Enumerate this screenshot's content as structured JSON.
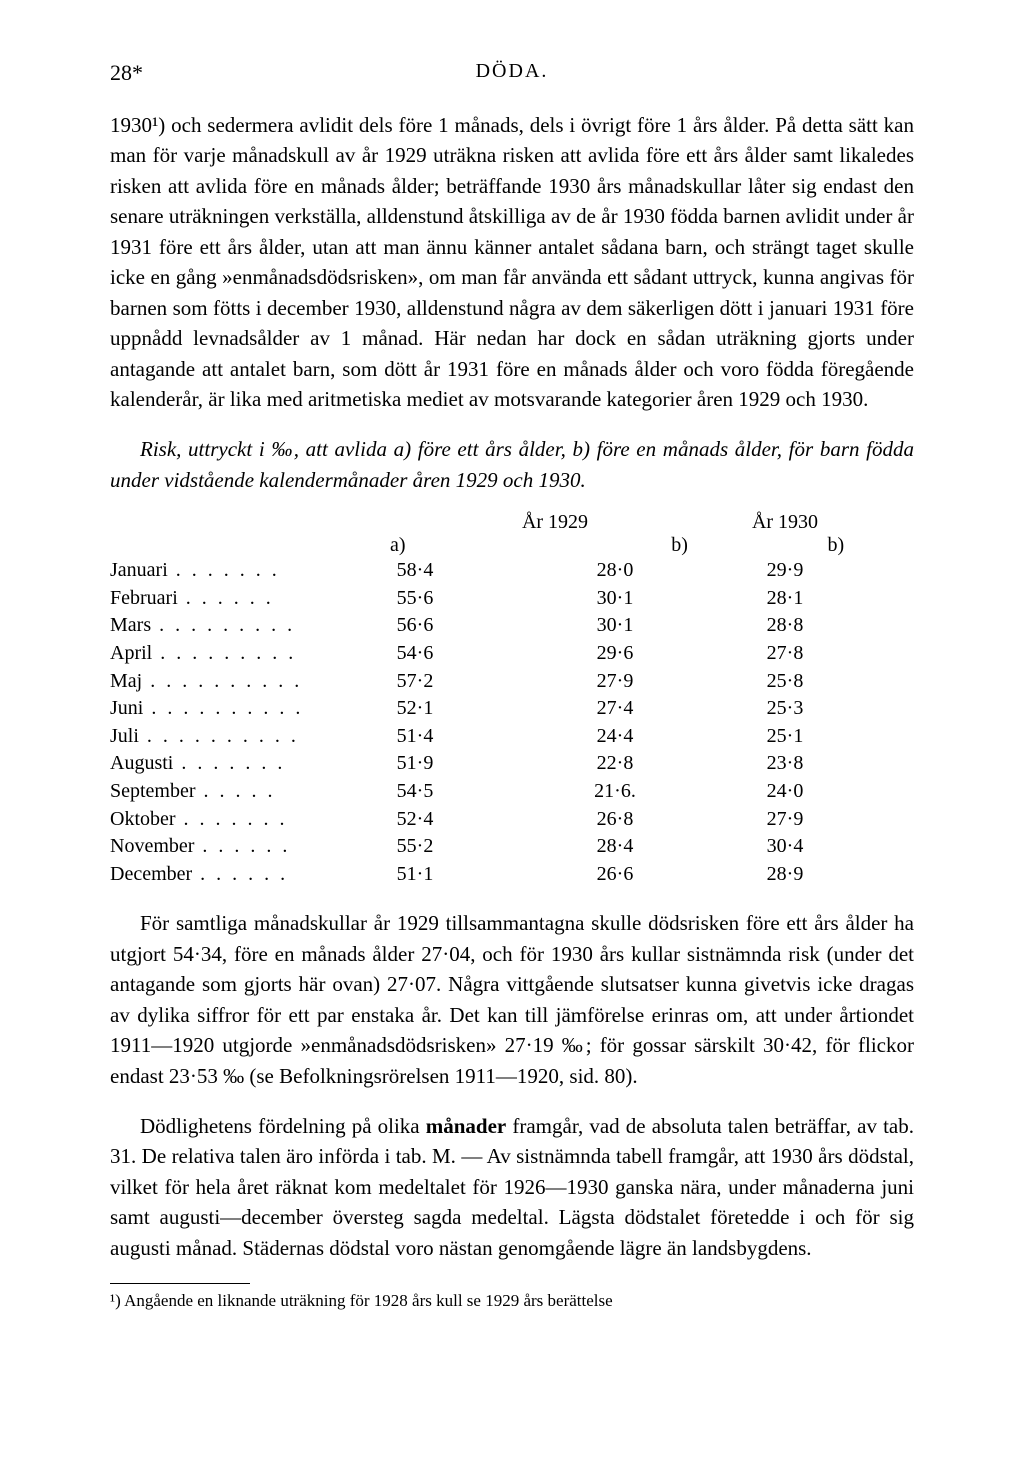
{
  "header": {
    "page_num": "28*",
    "title": "DÖDA."
  },
  "para1": "1930¹) och sedermera avlidit dels före 1 månads, dels i övrigt före 1 års ålder. På detta sätt kan man för varje månadskull av år 1929 uträkna risken att avlida före ett års ålder samt likaledes risken att avlida före en månads ålder; beträffande 1930 års månadskullar låter sig endast den senare uträkningen verkställa, alldenstund åtskilliga av de år 1930 födda barnen avlidit under år 1931 före ett års ålder, utan att man ännu känner antalet sådana barn, och strängt taget skulle icke en gång »enmånadsdödsrisken», om man får använda ett sådant uttryck, kunna angivas för barnen som fötts i december 1930, alldenstund några av dem säkerligen dött i januari 1931 före uppnådd levnadsålder av 1 månad. Här nedan har dock en sådan uträkning gjorts under antagande att antalet barn, som dött år 1931 före en månads ålder och voro födda föregående kalenderår, är lika med aritmetiska mediet av motsvarande kategorier åren 1929 och 1930.",
  "italic_heading": "Risk, uttryckt i ‰, att avlida a) före ett års ålder, b) före en månads ålder, för barn födda under vidstående kalendermånader åren 1929 och 1930.",
  "table": {
    "year1": "År 1929",
    "year2": "År 1930",
    "sub_a": "a)",
    "sub_b1": "b)",
    "sub_b2": "b)",
    "rows": [
      {
        "month": "Januari",
        "a": "58·4",
        "b1": "28·0",
        "b2": "29·9"
      },
      {
        "month": "Februari",
        "a": "55·6",
        "b1": "30·1",
        "b2": "28·1"
      },
      {
        "month": "Mars",
        "a": "56·6",
        "b1": "30·1",
        "b2": "28·8"
      },
      {
        "month": "April",
        "a": "54·6",
        "b1": "29·6",
        "b2": "27·8"
      },
      {
        "month": "Maj",
        "a": "57·2",
        "b1": "27·9",
        "b2": "25·8"
      },
      {
        "month": "Juni",
        "a": "52·1",
        "b1": "27·4",
        "b2": "25·3"
      },
      {
        "month": "Juli",
        "a": "51·4",
        "b1": "24·4",
        "b2": "25·1"
      },
      {
        "month": "Augusti",
        "a": "51·9",
        "b1": "22·8",
        "b2": "23·8"
      },
      {
        "month": "September",
        "a": "54·5",
        "b1": "21·6.",
        "b2": "24·0"
      },
      {
        "month": "Oktober",
        "a": "52·4",
        "b1": "26·8",
        "b2": "27·9"
      },
      {
        "month": "November",
        "a": "55·2",
        "b1": "28·4",
        "b2": "30·4"
      },
      {
        "month": "December",
        "a": "51·1",
        "b1": "26·6",
        "b2": "28·9"
      }
    ]
  },
  "para2": "För samtliga månadskullar år 1929 tillsammantagna skulle dödsrisken före ett års ålder ha utgjort 54·34, före en månads ålder 27·04, och för 1930 års kullar sistnämnda risk (under det antagande som gjorts här ovan) 27·07. Några vittgående slutsatser kunna givetvis icke dragas av dylika siffror för ett par enstaka år. Det kan till jämförelse erinras om, att under årtiondet 1911—1920 utgjorde »enmånadsdödsrisken» 27·19 ‰; för gossar särskilt 30·42, för flickor endast 23·53 ‰ (se Befolkningsrörelsen 1911—1920, sid. 80).",
  "para3_part1": "Dödlighetens fördelning på olika ",
  "para3_bold": "månader",
  "para3_part2": " framgår, vad de absoluta talen beträffar, av tab. 31. De relativa talen äro införda i tab. M. — Av sistnämnda tabell framgår, att 1930 års dödstal, vilket för hela året räknat kom medeltalet för 1926—1930 ganska nära, under månaderna juni samt augusti—december översteg sagda medeltal. Lägsta dödstalet företedde i och för sig augusti månad. Städernas dödstal voro nästan genomgående lägre än landsbygdens.",
  "footnote": "¹) Angående en liknande uträkning för 1928 års kull se 1929 års berättelse"
}
